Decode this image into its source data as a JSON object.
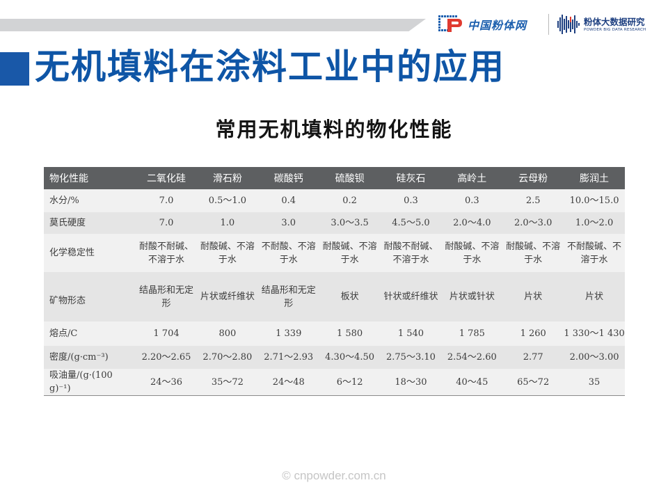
{
  "header": {
    "logo1_text": "中国粉体网",
    "logo2_cn": "粉体大数据研究",
    "logo2_en": "POWDER BIG DATA RESEARCH",
    "logo1_icon": "cp-logo-icon",
    "logo2_icon": "bar-wave-logo-icon",
    "brand_color": "#1c5fae"
  },
  "title": "无机填料在涂料工业中的应用",
  "subtitle": "常用无机填料的物化性能",
  "table": {
    "headers": [
      "物化性能",
      "二氧化硅",
      "滑石粉",
      "碳酸钙",
      "硫酸钡",
      "硅灰石",
      "高岭土",
      "云母粉",
      "膨润土"
    ],
    "rows": [
      [
        "水分/%",
        "7.0",
        "0.5～1.0",
        "0.4",
        "0.2",
        "0.3",
        "0.3",
        "2.5",
        "10.0～15.0"
      ],
      [
        "莫氏硬度",
        "7.0",
        "1.0",
        "3.0",
        "3.0～3.5",
        "4.5～5.0",
        "2.0～4.0",
        "2.0～3.0",
        "1.0～2.0"
      ],
      [
        "化学稳定性",
        "耐酸不耐碱、不溶于水",
        "耐酸碱、不溶于水",
        "不耐酸、不溶于水",
        "耐酸碱、不溶于水",
        "耐酸不耐碱、不溶于水",
        "耐酸碱、不溶于水",
        "耐酸碱、不溶于水",
        "不耐酸碱、不溶于水"
      ],
      [
        "矿物形态",
        "结晶形和无定形",
        "片状或纤维状",
        "结晶形和无定形",
        "板状",
        "针状或纤维状",
        "片状或针状",
        "片状",
        "片状"
      ],
      [
        "熔点/C",
        "1 704",
        "800",
        "1 339",
        "1 580",
        "1 540",
        "1 785",
        "1 260",
        "1 330～1 430"
      ],
      [
        "密度/(g·cm⁻³)",
        "2.20～2.65",
        "2.70～2.80",
        "2.71～2.93",
        "4.30～4.50",
        "2.75～3.10",
        "2.54～2.60",
        "2.77",
        "2.00～3.00"
      ],
      [
        "吸油量/(g·(100 g)⁻¹)",
        "24～36",
        "35～72",
        "24～48",
        "6～12",
        "18～30",
        "40～45",
        "65～72",
        "35"
      ]
    ]
  },
  "watermark": "© cnpowder.com.cn",
  "footer": "© cnpowder.com.cn"
}
